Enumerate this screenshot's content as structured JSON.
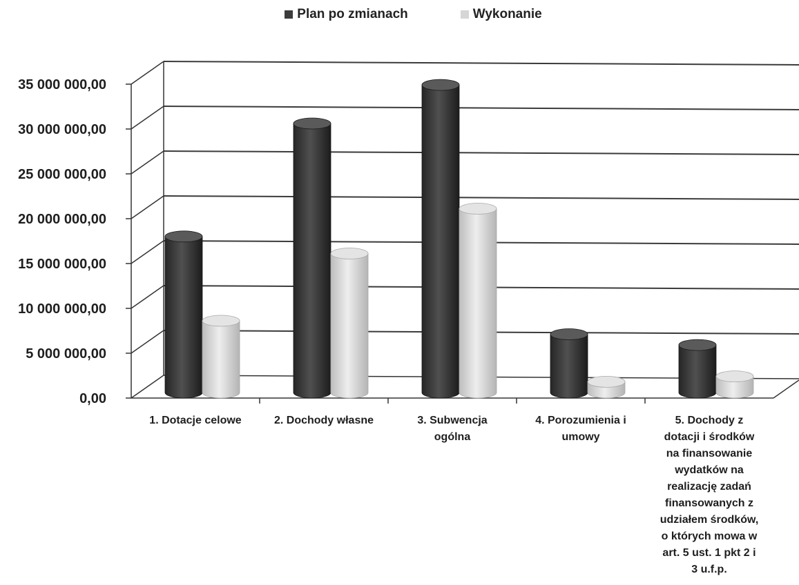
{
  "chart_data": {
    "type": "bar",
    "style": "3d-cylinder",
    "legend_position": "top-center",
    "grid": true,
    "categories": [
      [
        "1. Dotacje celowe"
      ],
      [
        "2. Dochody własne"
      ],
      [
        "3. Subwencja",
        "ogólna"
      ],
      [
        "4. Porozumienia i",
        "umowy"
      ],
      [
        "5. Dochody z",
        "dotacji i środków",
        "na finansowanie",
        "wydatków na",
        "realizację zadań",
        "finansowanych z",
        "udziałem środków,",
        "o których mowa w",
        "art. 5 ust. 1 pkt  2 i",
        "3 u.f.p."
      ]
    ],
    "series": [
      {
        "name": "Plan po zmianach",
        "color": "#3c3c3c",
        "values": [
          17400000,
          30000000,
          34300000,
          6500000,
          5300000
        ]
      },
      {
        "name": "Wykonanie",
        "color": "#d6d6d6",
        "values": [
          8000000,
          15500000,
          20500000,
          1200000,
          1800000
        ]
      }
    ],
    "ylim": [
      0,
      35000000
    ],
    "yticks": [
      "0,00",
      "5 000 000,00",
      "10 000 000,00",
      "15 000 000,00",
      "20 000 000,00",
      "25 000 000,00",
      "30 000 000,00",
      "35 000 000,00"
    ],
    "xlabel": "",
    "ylabel": "",
    "title": ""
  }
}
